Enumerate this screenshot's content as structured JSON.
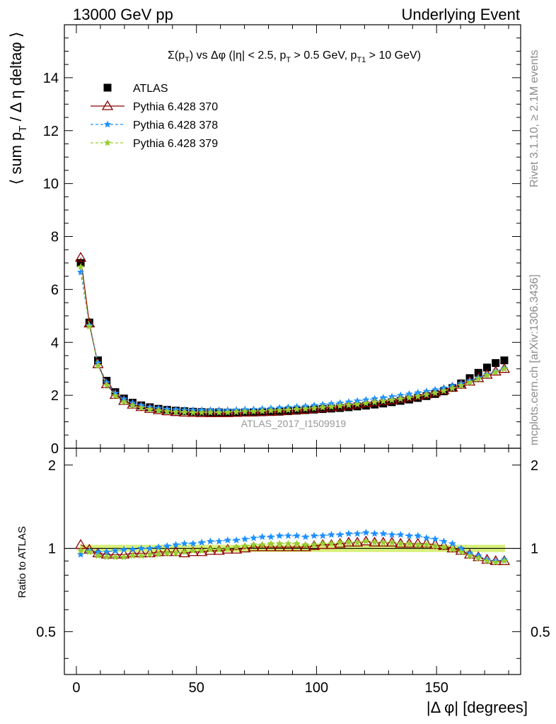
{
  "header": {
    "left": "13000 GeV pp",
    "right": "Underlying Event"
  },
  "side_labels": {
    "rivet": "Rivet 3.1.10, ≥ 2.1M events",
    "mcplots": "mcplots.cern.ch [arXiv:1306.3436]"
  },
  "watermark": "ATLAS_2017_I1509919",
  "chart_data": [
    {
      "type": "scatter",
      "title": "Σ(p_T) vs Δφ (|η| < 2.5, p_T > 0.5 GeV, p_T1 > 10 GeV)",
      "xlabel": "|Δ φ| [degrees]",
      "ylabel": "⟨ sum p_T / Δ η deltaφ ⟩",
      "xlim": [
        -5,
        185
      ],
      "ylim": [
        0,
        16
      ],
      "yticks": [
        0,
        2,
        4,
        6,
        8,
        10,
        12,
        14
      ],
      "xticks": [
        0,
        50,
        100,
        150
      ],
      "legend_position": "top-left",
      "x": [
        1.8,
        5.4,
        9.0,
        12.6,
        16.2,
        19.8,
        23.4,
        27.0,
        30.6,
        34.2,
        37.8,
        41.4,
        45.0,
        48.6,
        52.2,
        55.8,
        59.4,
        63.0,
        66.6,
        70.2,
        73.8,
        77.4,
        81.0,
        84.6,
        88.2,
        91.8,
        95.4,
        99.0,
        102.6,
        106.2,
        109.8,
        113.4,
        117.0,
        120.6,
        124.2,
        127.8,
        131.4,
        135.0,
        138.6,
        142.2,
        145.8,
        149.4,
        153.0,
        156.6,
        160.2,
        163.8,
        167.4,
        171.0,
        174.6,
        178.2
      ],
      "series": [
        {
          "name": "ATLAS",
          "color": "#000000",
          "marker": "square",
          "values": [
            7.0,
            4.75,
            3.32,
            2.55,
            2.12,
            1.88,
            1.72,
            1.62,
            1.55,
            1.49,
            1.45,
            1.42,
            1.4,
            1.38,
            1.37,
            1.36,
            1.36,
            1.35,
            1.35,
            1.35,
            1.35,
            1.36,
            1.37,
            1.38,
            1.4,
            1.42,
            1.44,
            1.46,
            1.48,
            1.5,
            1.52,
            1.55,
            1.58,
            1.61,
            1.65,
            1.69,
            1.74,
            1.79,
            1.84,
            1.9,
            1.97,
            2.05,
            2.15,
            2.28,
            2.45,
            2.65,
            2.85,
            3.05,
            3.22,
            3.32
          ]
        },
        {
          "name": "Pythia 6.428 370",
          "color": "#8b0000",
          "marker": "open-triangle",
          "values": [
            7.2,
            4.72,
            3.18,
            2.42,
            2.02,
            1.79,
            1.65,
            1.56,
            1.49,
            1.44,
            1.4,
            1.37,
            1.35,
            1.34,
            1.33,
            1.33,
            1.33,
            1.33,
            1.34,
            1.35,
            1.36,
            1.37,
            1.38,
            1.4,
            1.42,
            1.44,
            1.46,
            1.49,
            1.52,
            1.55,
            1.58,
            1.62,
            1.66,
            1.7,
            1.74,
            1.78,
            1.82,
            1.87,
            1.92,
            1.98,
            2.04,
            2.11,
            2.19,
            2.29,
            2.4,
            2.52,
            2.65,
            2.78,
            2.9,
            3.0
          ]
        },
        {
          "name": "Pythia 6.428 378",
          "color": "#1e90ff",
          "marker": "star",
          "values": [
            6.65,
            4.65,
            3.22,
            2.48,
            2.08,
            1.86,
            1.71,
            1.62,
            1.55,
            1.51,
            1.48,
            1.46,
            1.45,
            1.44,
            1.44,
            1.44,
            1.44,
            1.44,
            1.45,
            1.46,
            1.47,
            1.49,
            1.51,
            1.53,
            1.55,
            1.57,
            1.59,
            1.62,
            1.65,
            1.68,
            1.71,
            1.75,
            1.79,
            1.83,
            1.87,
            1.91,
            1.95,
            2.0,
            2.05,
            2.1,
            2.15,
            2.21,
            2.28,
            2.36,
            2.45,
            2.55,
            2.66,
            2.78,
            2.9,
            3.02
          ]
        },
        {
          "name": "Pythia 6.428 379",
          "color": "#9acd32",
          "marker": "star",
          "values": [
            6.85,
            4.6,
            3.12,
            2.38,
            1.98,
            1.75,
            1.61,
            1.53,
            1.47,
            1.42,
            1.39,
            1.37,
            1.36,
            1.35,
            1.35,
            1.35,
            1.35,
            1.36,
            1.37,
            1.38,
            1.39,
            1.4,
            1.42,
            1.43,
            1.45,
            1.47,
            1.49,
            1.51,
            1.54,
            1.57,
            1.6,
            1.63,
            1.66,
            1.7,
            1.74,
            1.78,
            1.82,
            1.86,
            1.91,
            1.96,
            2.02,
            2.09,
            2.17,
            2.26,
            2.37,
            2.49,
            2.62,
            2.75,
            2.88,
            3.0
          ]
        }
      ]
    },
    {
      "type": "scatter",
      "ylabel": "Ratio to ATLAS",
      "xlabel": "|Δ φ| [degrees]",
      "xlim": [
        -5,
        185
      ],
      "ylim": [
        0.35,
        2.3
      ],
      "yticks": [
        0.5,
        1,
        2
      ],
      "x": [
        1.8,
        5.4,
        9.0,
        12.6,
        16.2,
        19.8,
        23.4,
        27.0,
        30.6,
        34.2,
        37.8,
        41.4,
        45.0,
        48.6,
        52.2,
        55.8,
        59.4,
        63.0,
        66.6,
        70.2,
        73.8,
        77.4,
        81.0,
        84.6,
        88.2,
        91.8,
        95.4,
        99.0,
        102.6,
        106.2,
        109.8,
        113.4,
        117.0,
        120.6,
        124.2,
        127.8,
        131.4,
        135.0,
        138.6,
        142.2,
        145.8,
        149.4,
        153.0,
        156.6,
        160.2,
        163.8,
        167.4,
        171.0,
        174.6,
        178.2
      ],
      "band": {
        "low": 0.97,
        "high": 1.03,
        "color": "#d8f07a"
      },
      "series": [
        {
          "name": "Pythia 6.428 370",
          "color": "#8b0000",
          "marker": "open-triangle",
          "values": [
            1.03,
            0.99,
            0.96,
            0.95,
            0.95,
            0.95,
            0.96,
            0.96,
            0.96,
            0.97,
            0.97,
            0.97,
            0.96,
            0.97,
            0.97,
            0.98,
            0.98,
            0.99,
            0.99,
            1.0,
            1.01,
            1.01,
            1.01,
            1.01,
            1.01,
            1.01,
            1.01,
            1.02,
            1.03,
            1.03,
            1.04,
            1.05,
            1.05,
            1.06,
            1.05,
            1.05,
            1.05,
            1.04,
            1.04,
            1.04,
            1.04,
            1.03,
            1.02,
            1.0,
            0.98,
            0.95,
            0.93,
            0.91,
            0.9,
            0.9
          ]
        },
        {
          "name": "Pythia 6.428 378",
          "color": "#1e90ff",
          "marker": "star",
          "values": [
            0.95,
            0.98,
            0.97,
            0.97,
            0.98,
            0.99,
            0.99,
            1.0,
            1.0,
            1.01,
            1.02,
            1.03,
            1.04,
            1.04,
            1.05,
            1.06,
            1.06,
            1.07,
            1.07,
            1.08,
            1.09,
            1.1,
            1.1,
            1.11,
            1.11,
            1.11,
            1.1,
            1.11,
            1.11,
            1.12,
            1.12,
            1.13,
            1.13,
            1.14,
            1.13,
            1.13,
            1.12,
            1.12,
            1.11,
            1.11,
            1.09,
            1.08,
            1.06,
            1.04,
            1.0,
            0.96,
            0.94,
            0.91,
            0.9,
            0.91
          ]
        },
        {
          "name": "Pythia 6.428 379",
          "color": "#9acd32",
          "marker": "star",
          "values": [
            0.98,
            0.97,
            0.94,
            0.93,
            0.93,
            0.93,
            0.94,
            0.94,
            0.95,
            0.95,
            0.96,
            0.96,
            0.97,
            0.98,
            0.98,
            0.99,
            0.99,
            1.0,
            1.01,
            1.02,
            1.03,
            1.03,
            1.04,
            1.04,
            1.04,
            1.04,
            1.03,
            1.03,
            1.04,
            1.04,
            1.05,
            1.05,
            1.05,
            1.06,
            1.05,
            1.05,
            1.05,
            1.04,
            1.04,
            1.03,
            1.03,
            1.02,
            1.01,
            0.99,
            0.97,
            0.94,
            0.92,
            0.9,
            0.89,
            0.9
          ]
        }
      ]
    }
  ]
}
